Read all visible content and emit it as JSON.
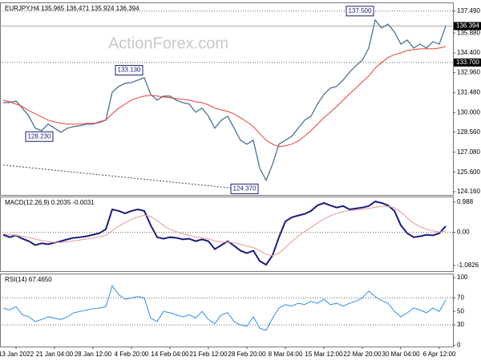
{
  "chart_data": [
    {
      "type": "line",
      "title": "EURJPY,H4  135.965 136.471 135.924 136.394",
      "watermark": "ActionForex.com",
      "ylim": [
        123.92,
        138.14
      ],
      "yticks": [
        {
          "value": 137.49,
          "label": "137.490"
        },
        {
          "value": 135.88,
          "label": "135.880"
        },
        {
          "value": 134.4,
          "label": "134.400"
        },
        {
          "value": 132.96,
          "label": "132.960"
        },
        {
          "value": 131.48,
          "label": "131.480"
        },
        {
          "value": 130,
          "label": "130.000"
        },
        {
          "value": 128.56,
          "label": "128.560"
        },
        {
          "value": 127.08,
          "label": "127.080"
        },
        {
          "value": 125.6,
          "label": "125.600"
        },
        {
          "value": 124.16,
          "label": "124.160"
        }
      ],
      "levels": [
        {
          "value": 137.5,
          "style": "dotted"
        },
        {
          "value": 136.394,
          "label": "136.394",
          "style": "solid"
        },
        {
          "value": 133.7,
          "label": "133.700",
          "style": "dotted"
        }
      ],
      "annotations": [
        {
          "label": "137.500",
          "value": 137.5,
          "at": 58
        },
        {
          "label": "133.130",
          "value": 133.13,
          "at": 22
        },
        {
          "label": "128.230",
          "value": 128.23,
          "at": 8
        },
        {
          "label": "124.370",
          "value": 124.37,
          "at": 40
        }
      ],
      "trendline": {
        "start": [
          0,
          126.13
        ],
        "end": [
          36,
          124.41
        ]
      },
      "series": [
        {
          "color": "#4f7290",
          "width": 1.3,
          "values": [
            130.74,
            130.74,
            130.86,
            130.33,
            129.74,
            128.85,
            128.67,
            129.15,
            128.85,
            128.55,
            128.85,
            128.97,
            129.03,
            129.15,
            129.15,
            129.32,
            129.44,
            131.51,
            131.93,
            132.16,
            132.22,
            132.4,
            132.58,
            131.34,
            130.92,
            131.22,
            131.22,
            130.92,
            130.74,
            130.63,
            130.03,
            130.33,
            129.74,
            128.85,
            129.44,
            129.74,
            128.85,
            127.96,
            127.67,
            127.96,
            125.89,
            125.0,
            126.19,
            127.67,
            127.96,
            128.26,
            128.85,
            129.44,
            129.74,
            130.63,
            131.34,
            131.81,
            131.93,
            132.4,
            132.99,
            133.47,
            133.88,
            134.77,
            136.84,
            136.25,
            136.54,
            135.95,
            135.06,
            135.36,
            134.77,
            135.06,
            134.77,
            135.24,
            135.06,
            136.39
          ]
        },
        {
          "color": "#e8403a",
          "width": 1,
          "values": [
            130.92,
            130.8,
            130.63,
            130.45,
            130.15,
            129.91,
            129.68,
            129.44,
            129.32,
            129.21,
            129.15,
            129.15,
            129.15,
            129.21,
            129.21,
            129.26,
            129.44,
            129.91,
            130.33,
            130.63,
            130.92,
            131.1,
            131.22,
            131.28,
            131.22,
            131.16,
            131.1,
            131.04,
            130.98,
            130.92,
            130.8,
            130.74,
            130.57,
            130.33,
            130.21,
            130.09,
            129.91,
            129.62,
            129.32,
            128.97,
            128.44,
            127.96,
            127.67,
            127.49,
            127.55,
            127.67,
            127.91,
            128.26,
            128.67,
            129.15,
            129.62,
            130.03,
            130.45,
            130.92,
            131.39,
            131.81,
            132.28,
            132.7,
            133.29,
            133.7,
            134.06,
            134.29,
            134.41,
            134.59,
            134.65,
            134.71,
            134.71,
            134.71,
            134.77,
            134.89
          ]
        }
      ]
    },
    {
      "type": "line",
      "title": "MACD(12,26,9) 0.2035 -0.0031",
      "ylim": [
        -1.27,
        1.17
      ],
      "yticks": [
        0.988,
        {
          "value": 0,
          "label": "0.00"
        },
        -1.0826
      ],
      "levels": [
        {
          "value": 0,
          "style": "dotted"
        }
      ],
      "series": [
        {
          "color": "#1c1c7a",
          "width": 2,
          "values": [
            -0.08,
            -0.16,
            -0.1,
            -0.21,
            -0.29,
            -0.42,
            -0.36,
            -0.39,
            -0.34,
            -0.29,
            -0.23,
            -0.18,
            -0.16,
            -0.13,
            -0.08,
            -0.03,
            0.1,
            0.75,
            0.7,
            0.62,
            0.7,
            0.75,
            0.7,
            0.23,
            -0.16,
            -0.21,
            -0.16,
            -0.18,
            -0.23,
            -0.21,
            -0.29,
            -0.23,
            -0.29,
            -0.55,
            -0.42,
            -0.29,
            -0.44,
            -0.6,
            -0.68,
            -0.6,
            -0.94,
            -1.06,
            -0.75,
            -0.16,
            0.36,
            0.49,
            0.55,
            0.6,
            0.7,
            0.88,
            0.96,
            0.88,
            0.81,
            0.86,
            0.75,
            0.78,
            0.81,
            0.86,
            1.01,
            0.96,
            0.88,
            0.7,
            0.23,
            -0.03,
            -0.16,
            -0.13,
            -0.08,
            -0.1,
            -0.03,
            0.2
          ]
        },
        {
          "color": "#e59a9a",
          "width": 1,
          "values": [
            -0.05,
            -0.08,
            -0.1,
            -0.13,
            -0.17,
            -0.22,
            -0.27,
            -0.31,
            -0.33,
            -0.33,
            -0.31,
            -0.28,
            -0.25,
            -0.22,
            -0.19,
            -0.15,
            -0.1,
            0.05,
            0.2,
            0.32,
            0.42,
            0.5,
            0.56,
            0.52,
            0.38,
            0.22,
            0.1,
            0.02,
            -0.05,
            -0.1,
            -0.15,
            -0.18,
            -0.21,
            -0.28,
            -0.32,
            -0.32,
            -0.34,
            -0.39,
            -0.45,
            -0.5,
            -0.6,
            -0.72,
            -0.76,
            -0.68,
            -0.5,
            -0.3,
            -0.12,
            0.03,
            0.16,
            0.3,
            0.43,
            0.54,
            0.62,
            0.68,
            0.71,
            0.73,
            0.75,
            0.78,
            0.82,
            0.85,
            0.85,
            0.8,
            0.66,
            0.47,
            0.3,
            0.18,
            0.1,
            0.05,
            0.01,
            0.04
          ]
        }
      ]
    },
    {
      "type": "line",
      "title": "RSI(14) 67.4650",
      "ylim": [
        -2,
        106
      ],
      "yticks": [
        100,
        70,
        50,
        30,
        0
      ],
      "levels": [
        {
          "value": 70,
          "style": "dotted"
        },
        {
          "value": 30,
          "style": "dotted"
        }
      ],
      "categories": [
        null,
        null,
        "13 Jan 2022",
        null,
        null,
        null,
        null,
        null,
        "21 Jan 04:00",
        null,
        null,
        null,
        null,
        null,
        "28 Jan 12:00",
        null,
        null,
        null,
        null,
        null,
        "4 Feb 20:00",
        null,
        null,
        null,
        null,
        null,
        "14 Feb 04:00",
        null,
        null,
        null,
        null,
        null,
        "21 Feb 12:00",
        null,
        null,
        null,
        null,
        null,
        "28 Feb 20:00",
        null,
        null,
        null,
        null,
        null,
        "8 Mar 04:00",
        null,
        null,
        null,
        null,
        null,
        "15 Mar 12:00",
        null,
        null,
        null,
        null,
        null,
        "22 Mar 20:00",
        null,
        null,
        null,
        null,
        null,
        "30 Mar 04:00",
        null,
        null,
        null,
        null,
        null,
        "6 Apr 12:00",
        null
      ],
      "series": [
        {
          "color": "#2f8fea",
          "width": 1,
          "values": [
            55,
            52,
            57,
            45,
            42,
            35,
            38,
            42,
            40,
            38,
            42,
            48,
            50,
            52,
            54,
            55,
            57,
            88,
            75,
            68,
            70,
            72,
            70,
            40,
            35,
            50,
            48,
            45,
            42,
            45,
            40,
            50,
            38,
            32,
            45,
            48,
            35,
            30,
            28,
            42,
            25,
            22,
            40,
            55,
            60,
            58,
            62,
            60,
            65,
            62,
            68,
            60,
            62,
            58,
            62,
            65,
            70,
            80,
            72,
            66,
            62,
            50,
            42,
            48,
            55,
            52,
            48,
            55,
            50,
            67
          ]
        }
      ]
    }
  ]
}
